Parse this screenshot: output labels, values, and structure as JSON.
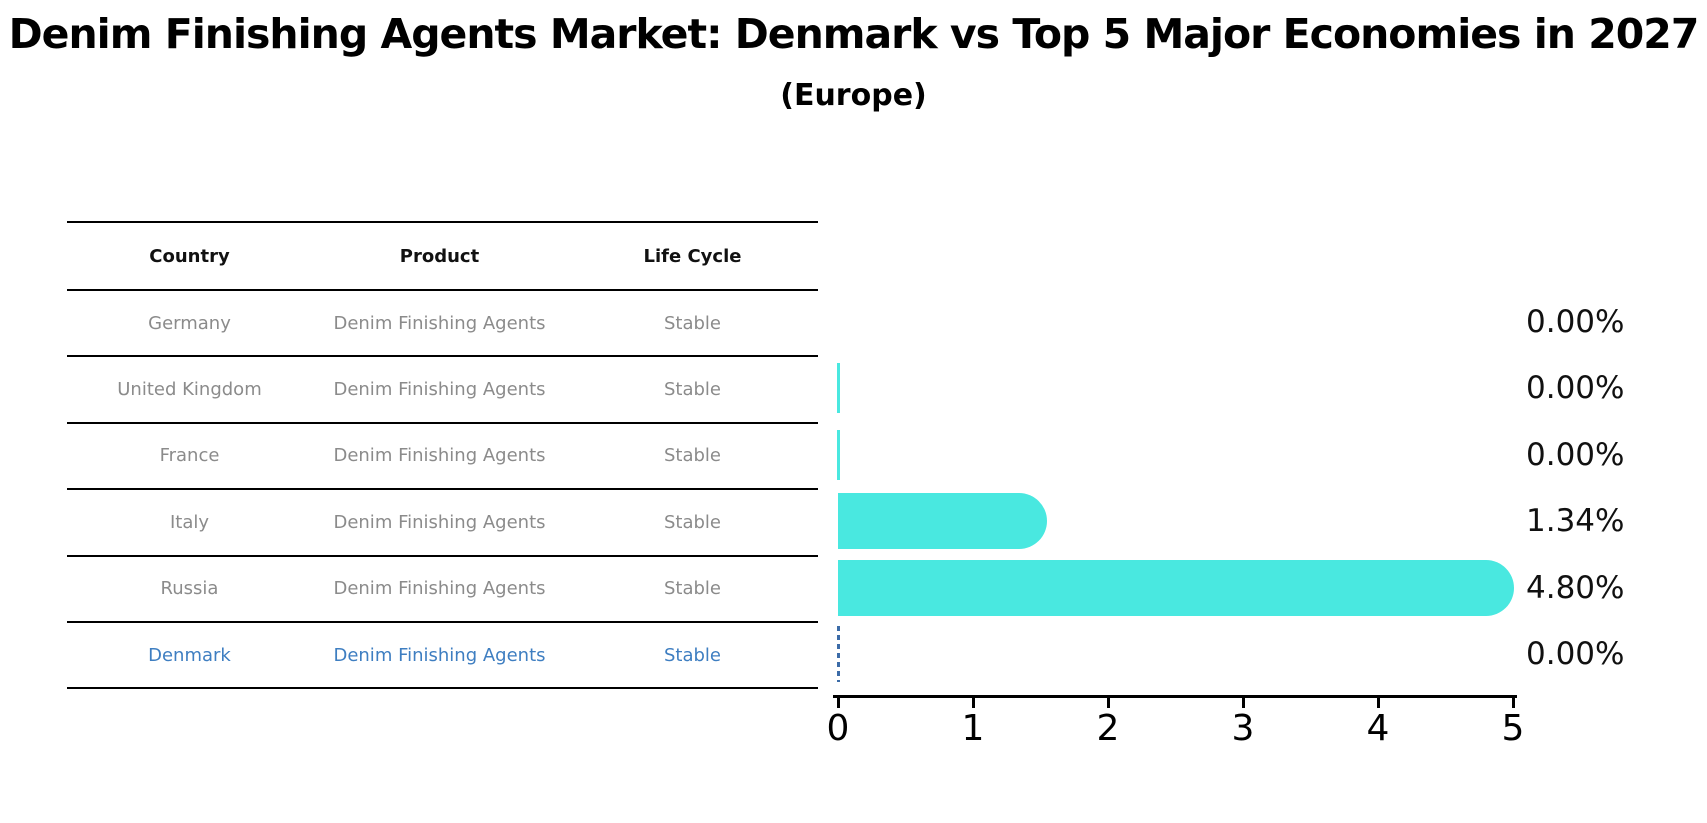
{
  "title": "Denim Finishing Agents Market: Denmark vs Top 5 Major Economies in 2027",
  "subtitle": "(Europe)",
  "table": {
    "headers": [
      "Country",
      "Product",
      "Life Cycle"
    ],
    "rows": [
      {
        "country": "Germany",
        "product": "Denim Finishing Agents",
        "life_cycle": "Stable",
        "highlighted": false
      },
      {
        "country": "United Kingdom",
        "product": "Denim Finishing Agents",
        "life_cycle": "Stable",
        "highlighted": false
      },
      {
        "country": "France",
        "product": "Denim Finishing Agents",
        "life_cycle": "Stable",
        "highlighted": false
      },
      {
        "country": "Italy",
        "product": "Denim Finishing Agents",
        "life_cycle": "Stable",
        "highlighted": false
      },
      {
        "country": "Russia",
        "product": "Denim Finishing Agents",
        "life_cycle": "Stable",
        "highlighted": false
      },
      {
        "country": "Denmark",
        "product": "Denim Finishing Agents",
        "life_cycle": "Stable",
        "highlighted": true
      }
    ]
  },
  "chart_data": {
    "type": "bar",
    "orientation": "horizontal",
    "title": "Denim Finishing Agents Market: Denmark vs Top 5 Major Economies in 2027 (Europe)",
    "categories": [
      "Germany",
      "United Kingdom",
      "France",
      "Italy",
      "Russia",
      "Denmark"
    ],
    "values": [
      0.0,
      0.0,
      0.0,
      1.34,
      4.8,
      0.0
    ],
    "value_labels": [
      "0.00%",
      "0.00%",
      "0.00%",
      "1.34%",
      "4.80%",
      "0.00%"
    ],
    "bars": [
      {
        "country": "Germany",
        "value": 0.0,
        "label": "0.00%",
        "style": "none"
      },
      {
        "country": "United Kingdom",
        "value": 0.0,
        "label": "0.00%",
        "style": "zero-line"
      },
      {
        "country": "France",
        "value": 0.0,
        "label": "0.00%",
        "style": "zero-line"
      },
      {
        "country": "Italy",
        "value": 1.34,
        "label": "1.34%",
        "style": "bar"
      },
      {
        "country": "Russia",
        "value": 4.8,
        "label": "4.80%",
        "style": "bar"
      },
      {
        "country": "Denmark",
        "value": 0.0,
        "label": "0.00%",
        "style": "dashed-outline"
      }
    ],
    "xlim": [
      0,
      5
    ],
    "x_ticks": [
      "0",
      "1",
      "2",
      "3",
      "4",
      "5"
    ],
    "grid": false,
    "legend": false
  },
  "colors": {
    "bar": "#49E8E0",
    "highlight_blue": "#3E7EC1",
    "dash_blue": "#3C6CA8",
    "muted_text": "#8b8b8b",
    "text": "#000000"
  }
}
